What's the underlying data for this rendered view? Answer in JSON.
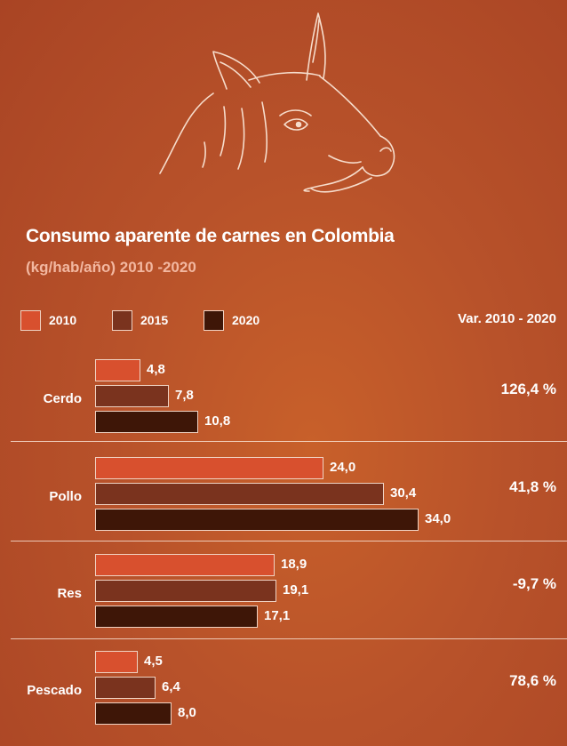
{
  "title": "Consumo aparente de carnes en Colombia",
  "subtitle": "(kg/hab/año) 2010 -2020",
  "variation_header": "Var. 2010 - 2020",
  "icon": "pig-head-illustration",
  "colors": {
    "background": "#b8522a",
    "series_2010": "#d8502e",
    "series_2015": "#7a331e",
    "series_2020": "#3e1607",
    "bar_border": "#f0d2c2"
  },
  "chart_data": {
    "type": "bar",
    "orientation": "horizontal",
    "title": "Consumo aparente de carnes en Colombia",
    "subtitle": "(kg/hab/año) 2010 -2020",
    "categories": [
      "Cerdo",
      "Pollo",
      "Res",
      "Pescado"
    ],
    "series": [
      {
        "name": "2010",
        "color": "#d8502e",
        "values": [
          4.8,
          24.0,
          18.9,
          4.5
        ],
        "labels": [
          "4,8",
          "24,0",
          "18,9",
          "4,5"
        ]
      },
      {
        "name": "2015",
        "color": "#7a331e",
        "values": [
          7.8,
          30.4,
          19.1,
          6.4
        ],
        "labels": [
          "7,8",
          "30,4",
          "19,1",
          "6,4"
        ]
      },
      {
        "name": "2020",
        "color": "#3e1607",
        "values": [
          10.8,
          34.0,
          17.1,
          8.0
        ],
        "labels": [
          "10,8",
          "34,0",
          "17,1",
          "8,0"
        ]
      }
    ],
    "variation": [
      "126,4 %",
      "41,8 %",
      "-9,7 %",
      "78,6 %"
    ],
    "legend_position": "top-left",
    "grid": false
  }
}
